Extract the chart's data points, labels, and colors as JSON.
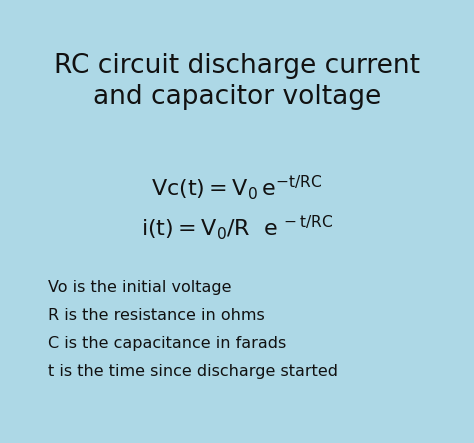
{
  "bg_color": "#add8e6",
  "text_color": "#111111",
  "title_line1": "RC circuit discharge current",
  "title_line2": "and capacitor voltage",
  "title_fontsize": 19,
  "formula_fontsize": 15,
  "desc_fontsize": 11.5,
  "desc_lines": [
    "Vo is the initial voltage",
    "R is the resistance in ohms",
    "C is the capacitance in farads",
    "t is the time since discharge started"
  ],
  "fig_width": 4.74,
  "fig_height": 4.43,
  "dpi": 100
}
